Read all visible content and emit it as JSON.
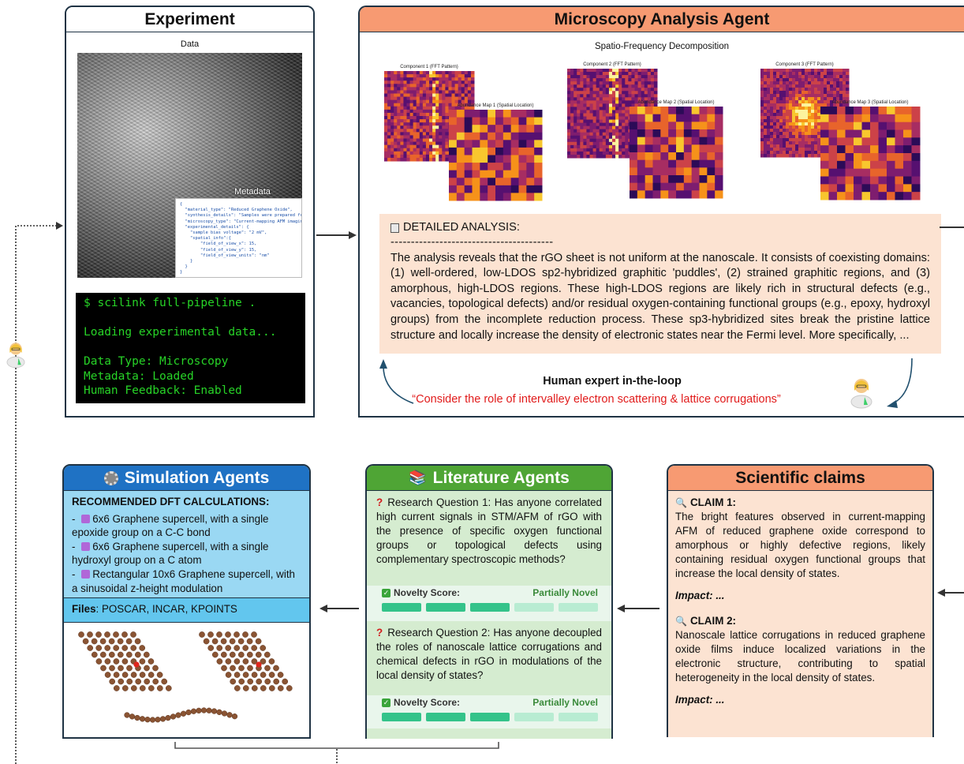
{
  "experiment": {
    "title": "Experiment",
    "data_label": "Data",
    "metadata_label": "Metadata",
    "metadata_lines": [
      "{",
      "  \"material_type\": \"Reduced Graphene Oxide\",",
      "  \"synthesis_details\": \"Samples were prepared from",
      "  \"microscopy_type\": \"Current-mapping AFM imaging",
      "  \"experimental_details\": {",
      "    \"sample bias voltage\": \"2 mV\",",
      "    \"spatial_info\":{",
      "        \"field_of_view_x\": 15,",
      "        \"field_of_view_y\": 15,",
      "        \"field_of_view_units\": \"nm\"",
      "    }",
      "  }",
      "}"
    ],
    "terminal_lines": [
      "$ scilink full-pipeline .",
      "",
      "Loading experimental data...",
      "",
      "Data Type: Microscopy",
      "Metadata: Loaded",
      "Human Feedback: Enabled"
    ]
  },
  "microscopy": {
    "title": "Microscopy Analysis Agent",
    "subtitle": "Spatio-Frequency Decomposition",
    "components": [
      {
        "fft_label": "Component 1 (FFT Pattern)",
        "map_label": "Abundance Map 1 (Spatial Location)"
      },
      {
        "fft_label": "Component 2 (FFT Pattern)",
        "map_label": "Abundance Map 2 (Spatial Location)"
      },
      {
        "fft_label": "Component 3 (FFT Pattern)",
        "map_label": "Abundance Map 3 (Spatial Location)"
      }
    ],
    "analysis_header": "DETAILED ANALYSIS:",
    "analysis_rule": "----------------------------------------",
    "analysis_text": "The analysis reveals that the rGO sheet is not uniform at the nanoscale. It consists of coexisting domains: (1) well-ordered, low-LDOS sp2-hybridized graphitic 'puddles', (2) strained graphitic regions, and (3) amorphous, high-LDOS regions. These high-LDOS regions are likely rich in structural defects (e.g., vacancies, topological defects) and/or residual oxygen-containing functional groups (e.g., epoxy, hydroxyl groups) from the incomplete reduction process. These sp3-hybridized sites break the pristine lattice structure and locally increase the density of electronic states near the Fermi level. More specifically, ...",
    "human_title": "Human expert in-the-loop",
    "human_quote": "“Consider the role of intervalley electron scattering & lattice corrugations”"
  },
  "claims": {
    "title": "Scientific claims",
    "items": [
      {
        "label": "CLAIM 1:",
        "text": "The bright features observed in current-mapping AFM of reduced graphene oxide correspond to amorphous or highly defective regions, likely containing residual oxygen functional groups that increase the local density of states.",
        "impact": "Impact: ..."
      },
      {
        "label": "CLAIM 2:",
        "text": "Nanoscale lattice corrugations in reduced graphene oxide films induce localized variations in the electronic structure, contributing to spatial heterogeneity in the local density of states.",
        "impact": "Impact: ..."
      }
    ]
  },
  "literature": {
    "title": "Literature Agents",
    "questions": [
      {
        "text": "Research Question 1: Has anyone correlated high current signals in STM/AFM of rGO with the presence of specific oxygen functional groups or topological defects using complementary spectroscopic methods?",
        "novelty_label": "Novelty Score:",
        "novelty_value": "Partially Novel",
        "score": 3,
        "max": 5
      },
      {
        "text": "Research Question 2: Has anyone decoupled the roles of nanoscale lattice corrugations and chemical defects in rGO in modulations of the local density of states?",
        "novelty_label": "Novelty Score:",
        "novelty_value": "Partially Novel",
        "score": 3,
        "max": 5
      }
    ]
  },
  "simulation": {
    "title": "Simulation Agents",
    "header": "RECOMMENDED DFT CALCULATIONS:",
    "items": [
      "6x6 Graphene supercell, with a single epoxide group on a C-C bond",
      "6x6 Graphene supercell, with a single hydroxyl group on a C atom",
      "Rectangular 10x6 Graphene supercell, with a sinusoidal z-height modulation"
    ],
    "files_label": "Files",
    "files_value": ": POSCAR, INCAR, KPOINTS"
  },
  "colors": {
    "orange_head": "#f79a72",
    "green_head": "#4fa535",
    "blue_head": "#1f72c4",
    "quote_red": "#e11b1b",
    "terminal_green": "#27d327",
    "novel_bar": "#34c38a",
    "novel_bar_light": "#b8ecd2"
  }
}
